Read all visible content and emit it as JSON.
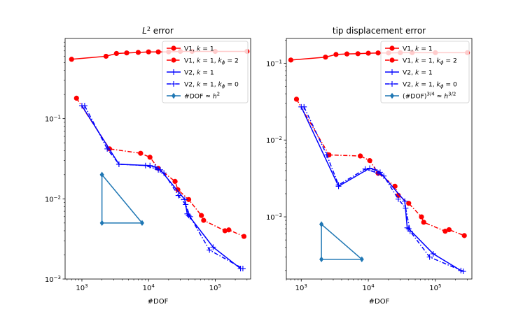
{
  "figure": {
    "background": "#ffffff"
  },
  "chart_data": [
    {
      "type": "line",
      "title": "L² error",
      "xlabel": "#DOF",
      "ylabel": "",
      "xscale": "log",
      "yscale": "log",
      "xlim": [
        560,
        340000
      ],
      "ylim": [
        0.001,
        1
      ],
      "xtick_labels": [
        {
          "value": 1000,
          "base": "10",
          "exp": "3"
        },
        {
          "value": 10000,
          "base": "10",
          "exp": "4"
        },
        {
          "value": 100000,
          "base": "10",
          "exp": "5"
        }
      ],
      "ytick_labels": [
        {
          "value": 0.001,
          "base": "10",
          "exp": "−3"
        },
        {
          "value": 0.01,
          "base": "10",
          "exp": "−2"
        },
        {
          "value": 0.1,
          "base": "10",
          "exp": "−1"
        }
      ],
      "legend_position": "top-right",
      "series": [
        {
          "name": "V1, k = 1",
          "color": "#ff0000",
          "dash": "solid",
          "marker": "circle",
          "x": [
            700,
            2300,
            3300,
            4700,
            7000,
            10000,
            14000,
            20000,
            30000,
            45000,
            100000,
            300000
          ],
          "y": [
            0.55,
            0.6,
            0.65,
            0.66,
            0.67,
            0.68,
            0.68,
            0.68,
            0.69,
            0.69,
            0.69,
            0.69
          ]
        },
        {
          "name": "V1, k = 1, k_ϕ = 2",
          "color": "#ff0000",
          "dash": "dashdot",
          "marker": "circle",
          "x": [
            830,
            2600,
            7600,
            10500,
            14000,
            25000,
            27500,
            40000,
            62000,
            67000,
            140000,
            160000,
            270000
          ],
          "y": [
            0.18,
            0.042,
            0.037,
            0.033,
            0.024,
            0.0165,
            0.013,
            0.0098,
            0.0062,
            0.0054,
            0.004,
            0.0041,
            0.0034
          ]
        },
        {
          "name": "V2, k = 1",
          "color": "#0000ff",
          "dash": "solid",
          "marker": "plus",
          "x": [
            1000,
            3600,
            10500,
            12500,
            15000,
            35000,
            38000,
            40000,
            93000,
            240000
          ],
          "y": [
            0.145,
            0.027,
            0.026,
            0.025,
            0.023,
            0.0098,
            0.0065,
            0.0062,
            0.0025,
            0.00135
          ]
        },
        {
          "name": "V2, k = 1, k_ϕ = 0",
          "color": "#0000ff",
          "dash": "dashdot",
          "marker": "plus",
          "x": [
            1100,
            2400,
            3600,
            9000,
            14000,
            17000,
            28000,
            36000,
            42000,
            82000,
            260000
          ],
          "y": [
            0.145,
            0.042,
            0.027,
            0.026,
            0.023,
            0.021,
            0.011,
            0.0085,
            0.006,
            0.0023,
            0.00135
          ]
        },
        {
          "name": "#DOF ≃ h²",
          "color": "#1f77b4",
          "dash": "solid",
          "marker": "diamond",
          "x": [
            2000,
            2000,
            8000,
            2000
          ],
          "y": [
            0.02,
            0.005,
            0.005,
            0.02
          ]
        }
      ]
    },
    {
      "type": "line",
      "title": "tip displacement error",
      "xlabel": "#DOF",
      "ylabel": "",
      "xscale": "log",
      "yscale": "log",
      "xlim": [
        600,
        350000
      ],
      "ylim": [
        0.000155,
        0.21
      ],
      "xtick_labels": [
        {
          "value": 1000,
          "base": "10",
          "exp": "3"
        },
        {
          "value": 10000,
          "base": "10",
          "exp": "4"
        },
        {
          "value": 100000,
          "base": "10",
          "exp": "5"
        }
      ],
      "ytick_labels": [
        {
          "value": 0.001,
          "base": "10",
          "exp": "−3"
        },
        {
          "value": 0.01,
          "base": "10",
          "exp": "−2"
        },
        {
          "value": 0.1,
          "base": "10",
          "exp": "−1"
        }
      ],
      "legend_position": "top-right",
      "series": [
        {
          "name": "V1, k = 1",
          "color": "#ff0000",
          "dash": "solid",
          "marker": "circle",
          "x": [
            700,
            2300,
            3300,
            4800,
            7000,
            10000,
            14000,
            20000,
            30000,
            45000,
            100000,
            300000
          ],
          "y": [
            0.11,
            0.12,
            0.13,
            0.132,
            0.133,
            0.135,
            0.136,
            0.136,
            0.137,
            0.137,
            0.137,
            0.137
          ]
        },
        {
          "name": "V1, k = 1, k_ϕ = 2",
          "color": "#ff0000",
          "dash": "dashdot",
          "marker": "circle",
          "x": [
            850,
            2600,
            7600,
            10500,
            14000,
            25000,
            28000,
            40000,
            62000,
            67000,
            140000,
            160000,
            270000
          ],
          "y": [
            0.034,
            0.0064,
            0.0062,
            0.0054,
            0.0037,
            0.0025,
            0.0019,
            0.0015,
            0.001,
            0.00085,
            0.00065,
            0.00068,
            0.00057
          ]
        },
        {
          "name": "V2, k = 1",
          "color": "#0000ff",
          "dash": "solid",
          "marker": "plus",
          "x": [
            1000,
            3600,
            10500,
            12500,
            15000,
            35000,
            38000,
            40000,
            93000,
            240000
          ],
          "y": [
            0.027,
            0.0025,
            0.0043,
            0.0041,
            0.0038,
            0.0016,
            0.00072,
            0.0007,
            0.00033,
            0.0002
          ]
        },
        {
          "name": "V2, k = 1, k_ϕ = 0",
          "color": "#0000ff",
          "dash": "dashdot",
          "marker": "plus",
          "x": [
            1100,
            2400,
            3600,
            9000,
            14000,
            17000,
            28000,
            36000,
            42000,
            82000,
            260000
          ],
          "y": [
            0.027,
            0.0064,
            0.0026,
            0.0042,
            0.0037,
            0.0034,
            0.0017,
            0.0013,
            0.00065,
            0.0003,
            0.000195
          ]
        },
        {
          "name": "(#DOF)^{3/4} ≃ h^{3/2}",
          "color": "#1f77b4",
          "dash": "solid",
          "marker": "diamond",
          "x": [
            2000,
            2000,
            8000,
            2000
          ],
          "y": [
            0.0008,
            0.00028,
            0.00028,
            0.0008
          ]
        }
      ]
    }
  ]
}
